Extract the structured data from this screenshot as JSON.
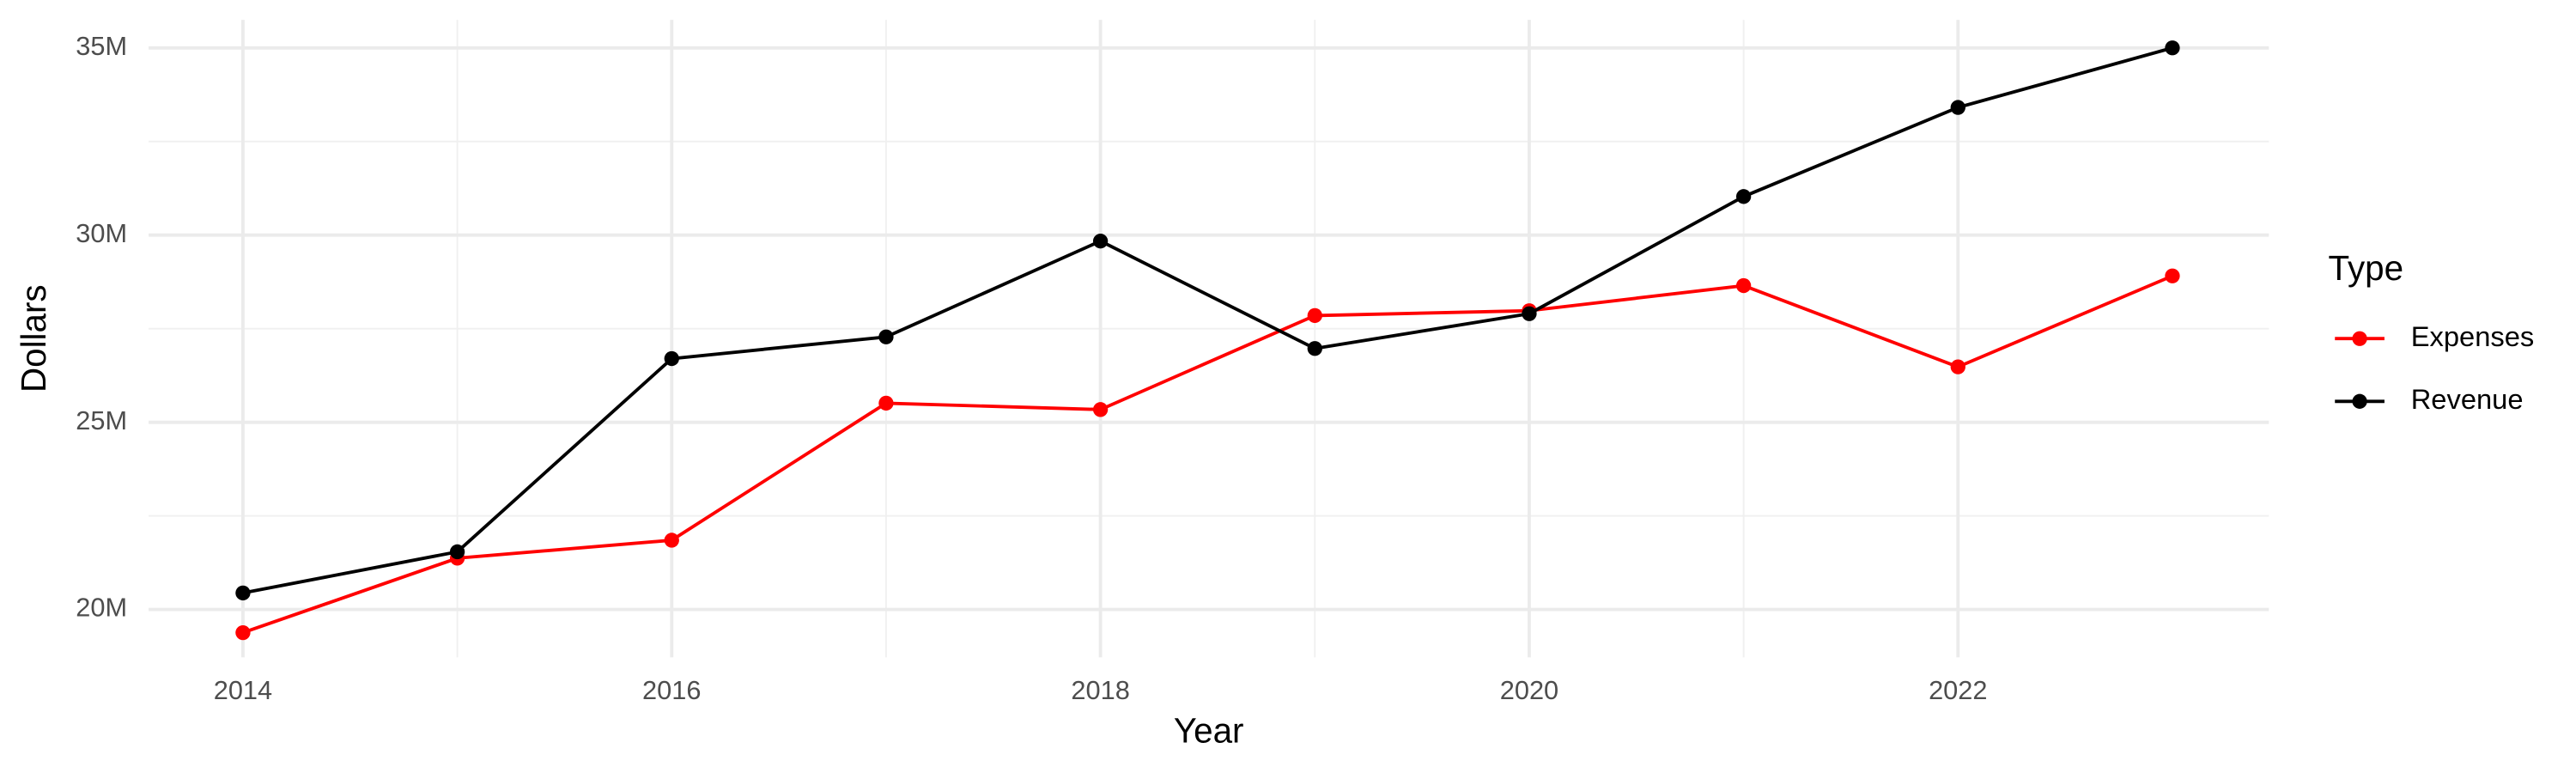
{
  "chart_data": {
    "type": "line",
    "x_label": "Year",
    "y_label": "Dollars",
    "legend_title": "Type",
    "x": [
      2014,
      2015,
      2016,
      2017,
      2018,
      2019,
      2020,
      2021,
      2022,
      2023
    ],
    "series": [
      {
        "name": "Expenses",
        "color": "#ff0000",
        "values": [
          19380000,
          21370000,
          21850000,
          25510000,
          25340000,
          27850000,
          27980000,
          28650000,
          26480000,
          28910000
        ]
      },
      {
        "name": "Revenue",
        "color": "#000000",
        "values": [
          20440000,
          21540000,
          26700000,
          27280000,
          29840000,
          26970000,
          27900000,
          31030000,
          33410000,
          35000000
        ]
      }
    ],
    "xlim": [
      2013.56,
      2023.45
    ],
    "xticks": [
      2014,
      2016,
      2018,
      2020,
      2022
    ],
    "ylim": [
      18720000,
      35750000
    ],
    "yticks": [
      {
        "value": 20000000,
        "label": "20M"
      },
      {
        "value": 25000000,
        "label": "25M"
      },
      {
        "value": 30000000,
        "label": "30M"
      },
      {
        "value": 35000000,
        "label": "35M"
      }
    ],
    "grid": true,
    "legend_position": "right"
  }
}
